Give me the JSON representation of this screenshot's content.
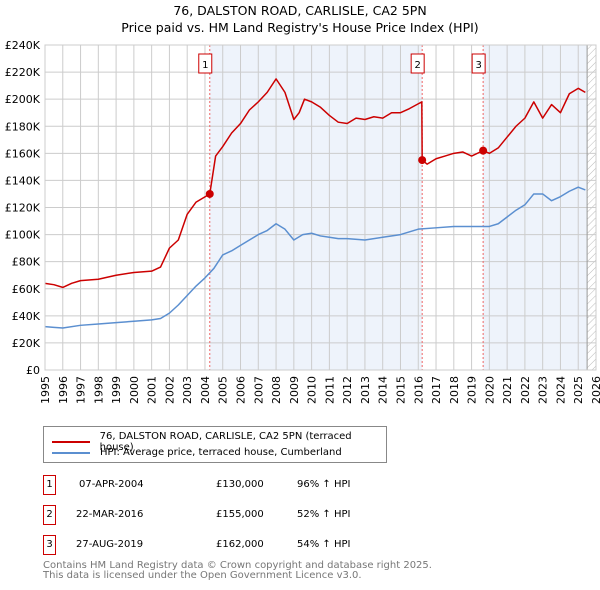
{
  "title": [
    "76, DALSTON ROAD, CARLISLE, CA2 5PN",
    "Price paid vs. HM Land Registry's House Price Index (HPI)"
  ],
  "chart_data": {
    "type": "line",
    "xlim": [
      1995,
      2026
    ],
    "ylim": [
      0,
      240000
    ],
    "x_ticks": [
      "1995",
      "1996",
      "1997",
      "1998",
      "1999",
      "2000",
      "2001",
      "2002",
      "2003",
      "2004",
      "2005",
      "2006",
      "2007",
      "2008",
      "2009",
      "2010",
      "2011",
      "2012",
      "2013",
      "2014",
      "2015",
      "2016",
      "2017",
      "2018",
      "2019",
      "2020",
      "2021",
      "2022",
      "2023",
      "2024",
      "2025",
      "2026"
    ],
    "y_ticks": [
      "£0",
      "£20K",
      "£40K",
      "£60K",
      "£80K",
      "£100K",
      "£120K",
      "£140K",
      "£160K",
      "£180K",
      "£200K",
      "£220K",
      "£240K"
    ],
    "grid": true,
    "forecast_from": 2025.5,
    "series": [
      {
        "name": "76, DALSTON ROAD, CARLISLE, CA2 5PN (terraced house)",
        "color": "#cc0000",
        "x": [
          1995,
          1995.5,
          1996,
          1996.5,
          1997,
          1998,
          1999,
          2000,
          2001,
          2001.5,
          2002,
          2002.5,
          2003,
          2003.5,
          2004.27,
          2004.6,
          2005,
          2005.5,
          2006,
          2006.5,
          2007,
          2007.5,
          2008,
          2008.5,
          2009,
          2009.3,
          2009.6,
          2010,
          2010.5,
          2011,
          2011.5,
          2012,
          2012.5,
          2013,
          2013.5,
          2014,
          2014.5,
          2015,
          2015.5,
          2016.2,
          2016.22,
          2016.5,
          2017,
          2017.5,
          2018,
          2018.5,
          2019,
          2019.65,
          2020,
          2020.5,
          2021,
          2021.5,
          2022,
          2022.5,
          2023,
          2023.5,
          2024,
          2024.5,
          2025,
          2025.4
        ],
        "y": [
          64000,
          63000,
          61000,
          64000,
          66000,
          67000,
          70000,
          72000,
          73000,
          76000,
          90000,
          96000,
          115000,
          124000,
          130000,
          158000,
          165000,
          175000,
          182000,
          192000,
          198000,
          205000,
          215000,
          205000,
          185000,
          190000,
          200000,
          198000,
          194000,
          188000,
          183000,
          182000,
          186000,
          185000,
          187000,
          186000,
          190000,
          190000,
          193000,
          198000,
          155000,
          152000,
          156000,
          158000,
          160000,
          161000,
          158000,
          162000,
          160000,
          164000,
          172000,
          180000,
          186000,
          198000,
          186000,
          196000,
          190000,
          204000,
          208000,
          205000
        ]
      },
      {
        "name": "HPI: Average price, terraced house, Cumberland",
        "color": "#5b8fd0",
        "x": [
          1995,
          1995.5,
          1996,
          1997,
          1998,
          1999,
          2000,
          2001,
          2001.5,
          2002,
          2002.5,
          2003,
          2003.5,
          2004,
          2004.5,
          2005,
          2005.5,
          2006,
          2006.5,
          2007,
          2007.5,
          2008,
          2008.5,
          2009,
          2009.5,
          2010,
          2010.5,
          2011,
          2011.5,
          2012,
          2013,
          2014,
          2015,
          2016,
          2017,
          2018,
          2019,
          2020,
          2020.5,
          2021,
          2021.5,
          2022,
          2022.5,
          2023,
          2023.5,
          2024,
          2024.5,
          2025,
          2025.4
        ],
        "y": [
          32000,
          31500,
          31000,
          33000,
          34000,
          35000,
          36000,
          37000,
          38000,
          42000,
          48000,
          55000,
          62000,
          68000,
          75000,
          85000,
          88000,
          92000,
          96000,
          100000,
          103000,
          108000,
          104000,
          96000,
          100000,
          101000,
          99000,
          98000,
          97000,
          97000,
          96000,
          98000,
          100000,
          104000,
          105000,
          106000,
          106000,
          106000,
          108000,
          113000,
          118000,
          122000,
          130000,
          130000,
          125000,
          128000,
          132000,
          135000,
          133000
        ]
      }
    ],
    "sales": [
      {
        "label": "1",
        "x": 2004.27,
        "y": 130000,
        "date": "07-APR-2004",
        "price": "£130,000",
        "hpi": "96% ↑ HPI"
      },
      {
        "label": "2",
        "x": 2016.22,
        "y": 155000,
        "date": "22-MAR-2016",
        "price": "£155,000",
        "hpi": "52% ↑ HPI"
      },
      {
        "label": "3",
        "x": 2019.65,
        "y": 162000,
        "date": "27-AUG-2019",
        "price": "£162,000",
        "hpi": "54% ↑ HPI"
      }
    ]
  },
  "legend": [
    "76, DALSTON ROAD, CARLISLE, CA2 5PN (terraced house)",
    "HPI: Average price, terraced house, Cumberland"
  ],
  "footer": [
    "Contains HM Land Registry data © Crown copyright and database right 2025.",
    "This data is licensed under the Open Government Licence v3.0."
  ]
}
